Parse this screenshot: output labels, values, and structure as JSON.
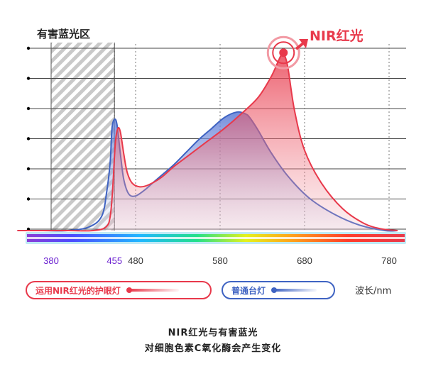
{
  "chart_data": {
    "type": "area",
    "title": "",
    "xlabel": "",
    "ylabel": "",
    "unit_label": "波长/nm",
    "x_range": [
      340,
      795
    ],
    "xticks": [
      380,
      455,
      480,
      580,
      680,
      780
    ],
    "ylim": [
      0,
      100
    ],
    "grid": true,
    "hazard_band": {
      "label": "有害蓝光区",
      "range": [
        380,
        455
      ]
    },
    "annotation": {
      "label": "NIR红光",
      "x": 655
    },
    "legend_position": "bottom",
    "series": [
      {
        "name": "运用NIR红光的护眼灯",
        "color": "#e8394b",
        "x": [
          340,
          370,
          400,
          430,
          445,
          450,
          453,
          456,
          459,
          462,
          466,
          470,
          476,
          485,
          495,
          510,
          525,
          545,
          565,
          585,
          605,
          625,
          640,
          648,
          652,
          655,
          660,
          668,
          680,
          700,
          725,
          750,
          770,
          790
        ],
        "y": [
          0,
          0,
          0,
          0,
          2,
          8,
          24,
          48,
          56,
          54,
          42,
          32,
          26,
          24,
          25,
          29,
          35,
          42,
          49,
          56,
          64,
          73,
          84,
          92,
          96,
          97,
          90,
          66,
          44,
          26,
          12,
          4,
          1,
          0
        ]
      },
      {
        "name": "普通台灯",
        "color": "#3f63c2",
        "x": [
          340,
          370,
          400,
          425,
          440,
          446,
          450,
          452,
          455,
          458,
          462,
          466,
          472,
          480,
          490,
          500,
          510,
          525,
          540,
          555,
          570,
          585,
          600,
          610,
          615,
          625,
          640,
          660,
          685,
          715,
          745,
          775,
          790
        ],
        "y": [
          0,
          0,
          0,
          2,
          8,
          22,
          38,
          56,
          61,
          58,
          42,
          28,
          20,
          19,
          22,
          26,
          30,
          36,
          43,
          50,
          56,
          62,
          65,
          64,
          62,
          55,
          43,
          30,
          18,
          9,
          3,
          0,
          0
        ]
      }
    ]
  },
  "caption": {
    "line1": "NIR红光与有害蓝光",
    "line2": "对细胞色素C氧化酶会产生变化"
  }
}
